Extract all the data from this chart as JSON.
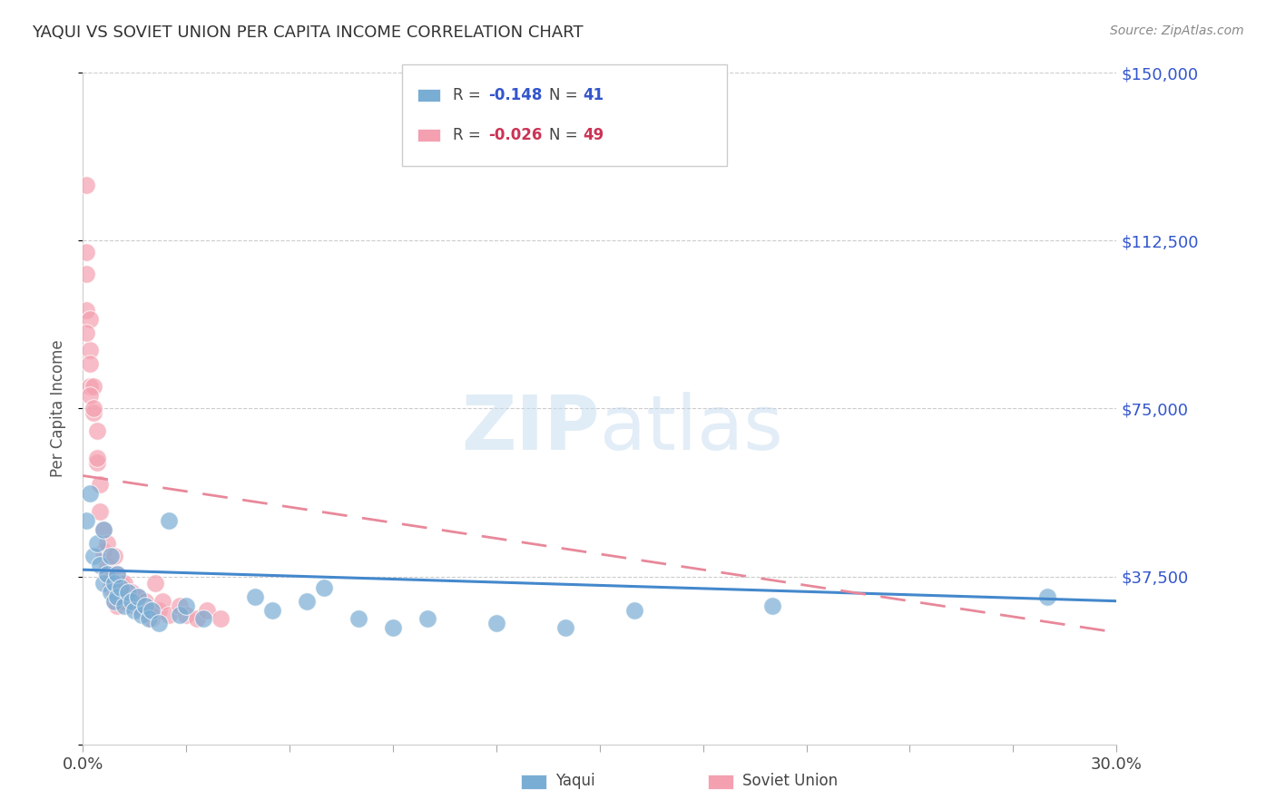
{
  "title": "YAQUI VS SOVIET UNION PER CAPITA INCOME CORRELATION CHART",
  "source": "Source: ZipAtlas.com",
  "ylabel": "Per Capita Income",
  "xlim": [
    0.0,
    0.3
  ],
  "ylim": [
    0,
    150000
  ],
  "yticks": [
    0,
    37500,
    75000,
    112500,
    150000
  ],
  "ytick_labels": [
    "",
    "$37,500",
    "$75,000",
    "$112,500",
    "$150,000"
  ],
  "background_color": "#ffffff",
  "blue_color": "#7aadd4",
  "pink_color": "#f4a0b0",
  "blue_line_color": "#4488cc",
  "pink_line_color": "#e8889a",
  "yaqui_x": [
    0.001,
    0.002,
    0.003,
    0.004,
    0.005,
    0.006,
    0.006,
    0.007,
    0.008,
    0.008,
    0.009,
    0.009,
    0.01,
    0.01,
    0.011,
    0.012,
    0.013,
    0.014,
    0.015,
    0.016,
    0.017,
    0.018,
    0.019,
    0.02,
    0.022,
    0.025,
    0.028,
    0.03,
    0.035,
    0.05,
    0.055,
    0.065,
    0.07,
    0.08,
    0.09,
    0.1,
    0.12,
    0.14,
    0.16,
    0.2,
    0.28
  ],
  "yaqui_y": [
    50000,
    56000,
    42000,
    45000,
    40000,
    48000,
    36000,
    38000,
    42000,
    34000,
    36000,
    32000,
    38000,
    33000,
    35000,
    31000,
    34000,
    32000,
    30000,
    33000,
    29000,
    31000,
    28000,
    30000,
    27000,
    50000,
    29000,
    31000,
    28000,
    33000,
    30000,
    32000,
    35000,
    28000,
    26000,
    28000,
    27000,
    26000,
    30000,
    31000,
    33000
  ],
  "soviet_x": [
    0.001,
    0.001,
    0.001,
    0.002,
    0.002,
    0.002,
    0.003,
    0.003,
    0.004,
    0.004,
    0.005,
    0.005,
    0.006,
    0.006,
    0.007,
    0.007,
    0.007,
    0.008,
    0.008,
    0.009,
    0.009,
    0.01,
    0.01,
    0.011,
    0.011,
    0.012,
    0.013,
    0.014,
    0.015,
    0.016,
    0.017,
    0.018,
    0.019,
    0.02,
    0.021,
    0.022,
    0.023,
    0.025,
    0.028,
    0.03,
    0.033,
    0.036,
    0.04,
    0.001,
    0.001,
    0.002,
    0.002,
    0.003,
    0.004
  ],
  "soviet_y": [
    125000,
    110000,
    97000,
    95000,
    88000,
    80000,
    80000,
    74000,
    70000,
    63000,
    58000,
    52000,
    48000,
    43000,
    45000,
    40000,
    38000,
    37000,
    35000,
    42000,
    32000,
    38000,
    31000,
    36000,
    32000,
    36000,
    33000,
    34000,
    31000,
    33000,
    30000,
    32000,
    30000,
    28000,
    36000,
    30000,
    32000,
    29000,
    31000,
    29000,
    28000,
    30000,
    28000,
    105000,
    92000,
    85000,
    78000,
    75000,
    64000
  ],
  "yaqui_trend_x": [
    0.0,
    0.3
  ],
  "yaqui_trend_y": [
    39000,
    32000
  ],
  "soviet_trend_x": [
    0.0,
    0.3
  ],
  "soviet_trend_y": [
    60000,
    25000
  ]
}
